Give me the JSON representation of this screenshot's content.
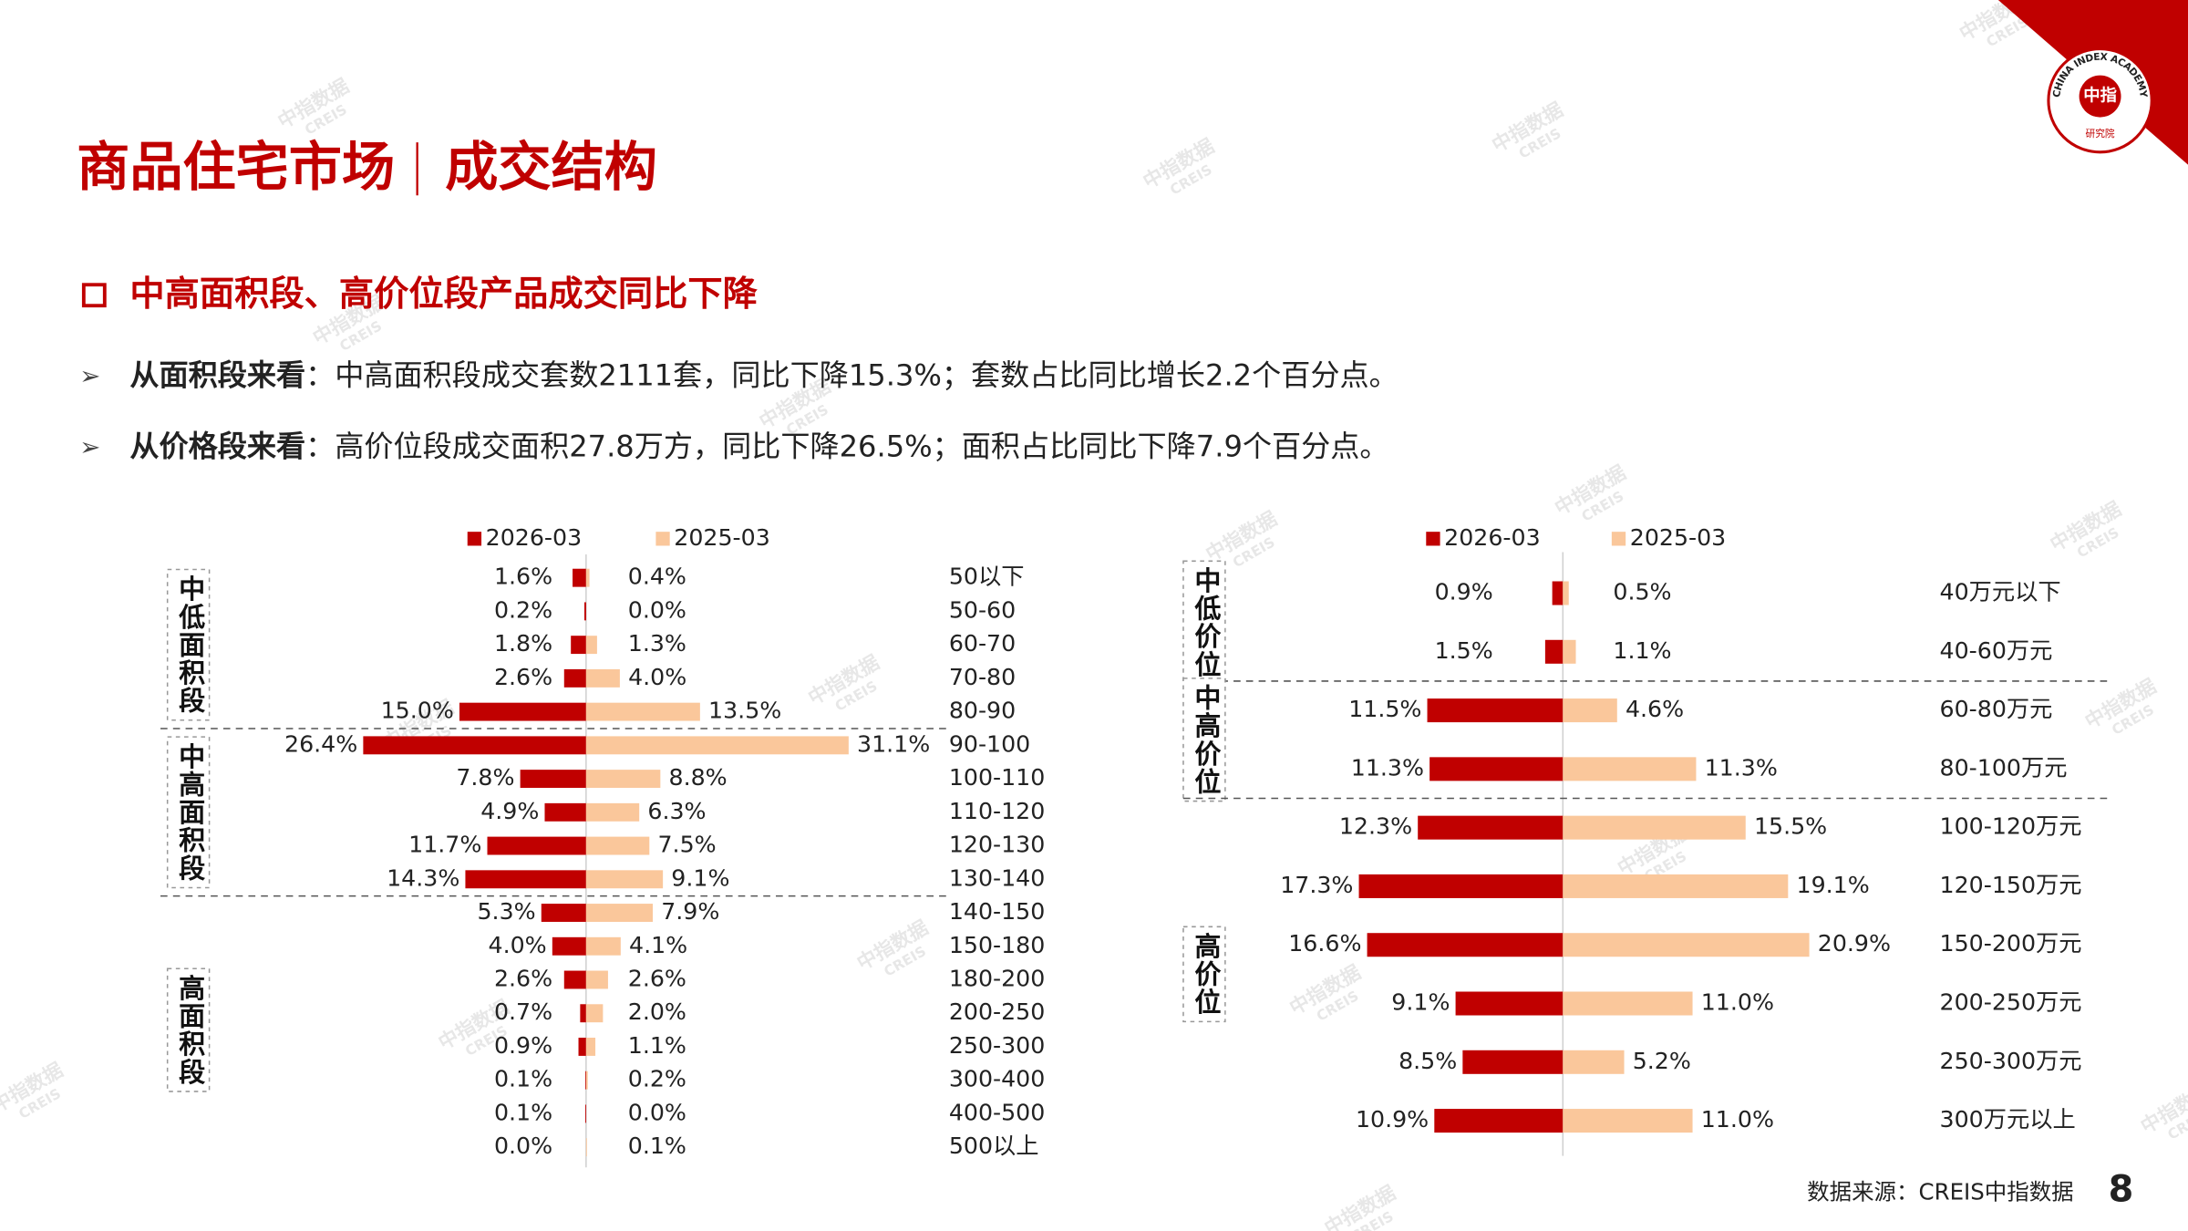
{
  "header": {
    "title": "商品住宅市场",
    "section": "成交结构"
  },
  "logo": {
    "ring": "CHINA INDEX ACADEMY",
    "mark": "中指",
    "sub": "研究院"
  },
  "watermark": {
    "cn": "中指数据",
    "en": "CREIS"
  },
  "headline": "中高面积段、高价位段产品成交同比下降",
  "bullets": [
    {
      "lead": "从面积段来看",
      "text": "：中高面积段成交套数2111套，同比下降15.3%；套数占比同比增长2.2个百分点。"
    },
    {
      "lead": "从价格段来看",
      "text": "：高价位段成交面积27.8万方，同比下降26.5%；面积占比同比下降7.9个百分点。"
    }
  ],
  "chart_data": [
    {
      "type": "butterfly",
      "categories": [
        "50以下",
        "50-60",
        "60-70",
        "70-80",
        "80-90",
        "90-100",
        "100-110",
        "110-120",
        "120-130",
        "130-140",
        "140-150",
        "150-180",
        "180-200",
        "200-250",
        "250-300",
        "300-400",
        "400-500",
        "500以上"
      ],
      "series": [
        {
          "name": "2026-03",
          "color": "#c00000",
          "values": [
            1.6,
            0.2,
            1.8,
            2.6,
            15.0,
            26.4,
            7.8,
            4.9,
            11.7,
            14.3,
            5.3,
            4.0,
            2.6,
            0.7,
            0.9,
            0.1,
            0.1,
            0.0
          ],
          "value_labels": [
            "1.6%",
            "0.2%",
            "1.8%",
            "2.6%",
            "15.0%",
            "26.4%",
            "7.8%",
            "4.9%",
            "11.7%",
            "14.3%",
            "5.3%",
            "4.0%",
            "2.6%",
            "0.7%",
            "0.9%",
            "0.1%",
            "0.1%",
            "0.0%"
          ]
        },
        {
          "name": "2025-03",
          "color": "#fac79b",
          "values": [
            0.4,
            0.0,
            1.3,
            4.0,
            13.5,
            31.1,
            8.8,
            6.3,
            7.5,
            9.1,
            7.9,
            4.1,
            2.6,
            2.0,
            1.1,
            0.2,
            0.0,
            0.1
          ],
          "value_labels": [
            "0.4%",
            "0.0%",
            "1.3%",
            "4.0%",
            "13.5%",
            "31.1%",
            "8.8%",
            "6.3%",
            "7.5%",
            "9.1%",
            "7.9%",
            "4.1%",
            "2.6%",
            "2.0%",
            "1.1%",
            "0.2%",
            "0.0%",
            "0.1%"
          ]
        }
      ],
      "groups": [
        {
          "label": "中低面积段",
          "first": "50以下",
          "last": "80-90"
        },
        {
          "label": "中高面积段",
          "first": "90-100",
          "last": "130-140"
        },
        {
          "label": "高面积段",
          "first": "140-150",
          "last": "500以上"
        }
      ]
    },
    {
      "type": "butterfly",
      "categories": [
        "40万元以下",
        "40-60万元",
        "60-80万元",
        "80-100万元",
        "100-120万元",
        "120-150万元",
        "150-200万元",
        "200-250万元",
        "250-300万元",
        "300万元以上"
      ],
      "series": [
        {
          "name": "2026-03",
          "color": "#c00000",
          "values": [
            0.9,
            1.5,
            11.5,
            11.3,
            12.3,
            17.3,
            16.6,
            9.1,
            8.5,
            10.9
          ],
          "value_labels": [
            "0.9%",
            "1.5%",
            "11.5%",
            "11.3%",
            "12.3%",
            "17.3%",
            "16.6%",
            "9.1%",
            "8.5%",
            "10.9%"
          ]
        },
        {
          "name": "2025-03",
          "color": "#fac79b",
          "values": [
            0.5,
            1.1,
            4.6,
            11.3,
            15.5,
            19.1,
            20.9,
            11.0,
            5.2,
            11.0
          ],
          "value_labels": [
            "0.5%",
            "1.1%",
            "4.6%",
            "11.3%",
            "15.5%",
            "19.1%",
            "20.9%",
            "11.0%",
            "5.2%",
            "11.0%"
          ]
        }
      ],
      "groups": [
        {
          "label": "中低价位",
          "first": "40万元以下",
          "last": "40-60万元"
        },
        {
          "label": "中高价位",
          "first": "60-80万元",
          "last": "80-100万元"
        },
        {
          "label": "高价位",
          "first": "100-120万元",
          "last": "300万元以上"
        }
      ]
    }
  ],
  "source": "数据来源：CREIS中指数据",
  "page": "8"
}
